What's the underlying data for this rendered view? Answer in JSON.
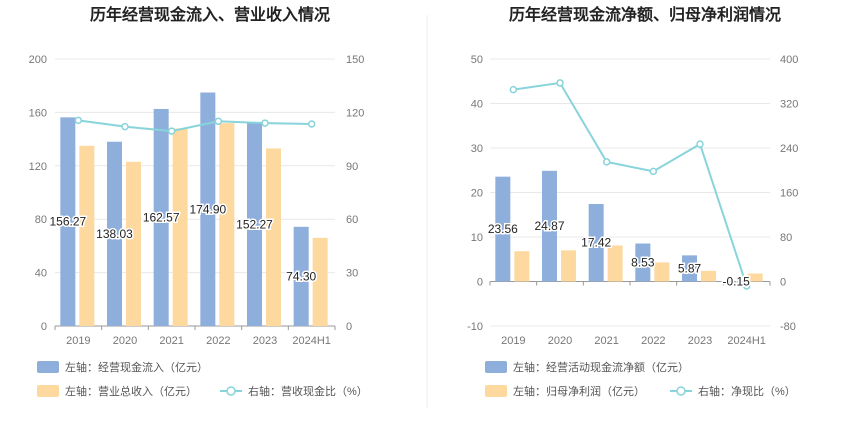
{
  "chart_data": [
    {
      "type": "bar",
      "title": "历年经营现金流入、营业收入情况",
      "categories": [
        "2019",
        "2020",
        "2021",
        "2022",
        "2023",
        "2024H1"
      ],
      "left_axis": {
        "min": 0,
        "max": 200,
        "ticks": [
          "0",
          "40",
          "80",
          "120",
          "160",
          "200"
        ]
      },
      "right_axis": {
        "min": 0,
        "max": 150,
        "ticks": [
          "0",
          "30",
          "60",
          "90",
          "120",
          "150"
        ]
      },
      "series": [
        {
          "name": "左轴：经营现金流入（亿元）",
          "kind": "bar",
          "axis": "left",
          "color": "#8eaedc",
          "values": [
            156.27,
            138.03,
            162.57,
            174.9,
            152.27,
            74.3
          ],
          "labels": [
            "156.27",
            "138.03",
            "162.57",
            "174.90",
            "152.27",
            "74.30"
          ]
        },
        {
          "name": "左轴：营业总收入（亿元）",
          "kind": "bar",
          "axis": "left",
          "color": "#fdd9a0",
          "values": [
            135,
            123,
            148,
            152,
            133,
            66
          ]
        },
        {
          "name": "右轴：营收现金比（%）",
          "kind": "line",
          "axis": "right",
          "color": "#88d4db",
          "values": [
            115.5,
            112,
            109.5,
            115,
            114,
            113.5
          ]
        }
      ]
    },
    {
      "type": "bar",
      "title": "历年经营现金流净额、归母净利润情况",
      "categories": [
        "2019",
        "2020",
        "2021",
        "2022",
        "2023",
        "2024H1"
      ],
      "left_axis": {
        "min": -10,
        "max": 50,
        "ticks": [
          "-10",
          "0",
          "10",
          "20",
          "30",
          "40",
          "50"
        ]
      },
      "right_axis": {
        "min": -80,
        "max": 400,
        "ticks": [
          "-80",
          "0",
          "80",
          "160",
          "240",
          "320",
          "400"
        ]
      },
      "series": [
        {
          "name": "左轴：经营活动现金流净额（亿元）",
          "kind": "bar",
          "axis": "left",
          "color": "#8eaedc",
          "values": [
            23.56,
            24.87,
            17.42,
            8.53,
            5.87,
            -0.15
          ],
          "labels": [
            "23.56",
            "24.87",
            "17.42",
            "8.53",
            "5.87",
            "-0.15"
          ]
        },
        {
          "name": "左轴：归母净利润（亿元）",
          "kind": "bar",
          "axis": "left",
          "color": "#fdd9a0",
          "values": [
            6.8,
            7.0,
            8.1,
            4.3,
            2.4,
            1.8
          ]
        },
        {
          "name": "右轴：净现比（%）",
          "kind": "line",
          "axis": "right",
          "color": "#88d4db",
          "values": [
            345,
            357,
            215,
            198,
            247,
            -8
          ]
        }
      ]
    }
  ]
}
